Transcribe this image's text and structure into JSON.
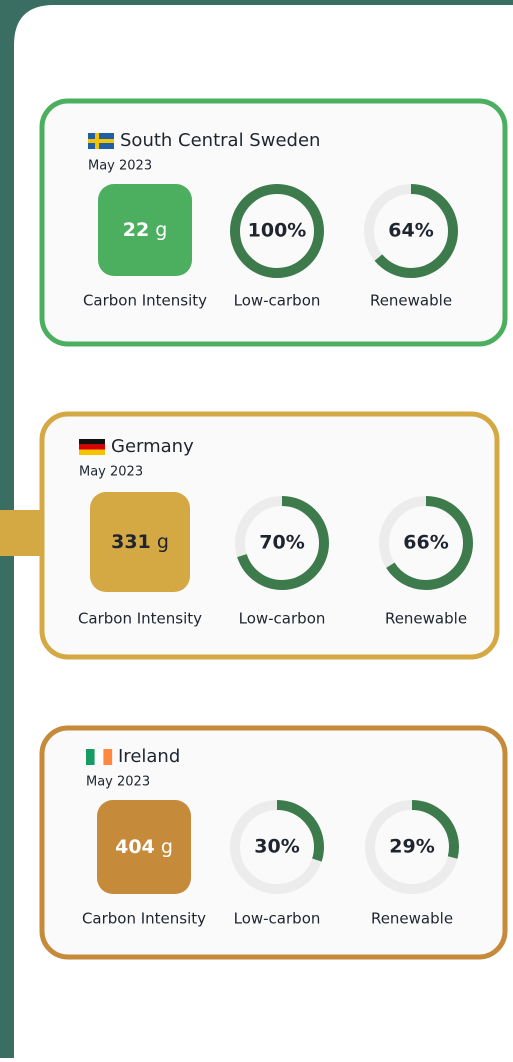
{
  "cards": [
    {
      "flag": "se",
      "name": "South Central Sweden",
      "date": "May 2023",
      "carbon_intensity": 22,
      "unit": "g",
      "carbon_label": "Carbon Intensity",
      "low_carbon": 100,
      "low_carbon_value_label": "100%",
      "low_carbon_label": "Low-carbon",
      "renewable": 64,
      "renewable_value_label": "64%",
      "renewable_label": "Renewable",
      "color": "#4caf5f"
    },
    {
      "flag": "de",
      "name": "Germany",
      "date": "May 2023",
      "carbon_intensity": 331,
      "unit": "g",
      "carbon_label": "Carbon Intensity",
      "low_carbon": 70,
      "low_carbon_value_label": "70%",
      "low_carbon_label": "Low-carbon",
      "renewable": 66,
      "renewable_value_label": "66%",
      "renewable_label": "Renewable",
      "color": "#d4a843"
    },
    {
      "flag": "ie",
      "name": "Ireland",
      "date": "May 2023",
      "carbon_intensity": 404,
      "unit": "g",
      "carbon_label": "Carbon Intensity",
      "low_carbon": 30,
      "low_carbon_value_label": "30%",
      "low_carbon_label": "Low-carbon",
      "renewable": 29,
      "renewable_value_label": "29%",
      "renewable_label": "Renewable",
      "color": "#c58a3a"
    }
  ]
}
